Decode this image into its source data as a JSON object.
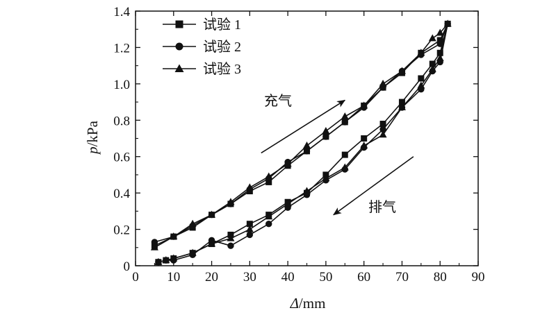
{
  "chart_data": {
    "type": "line",
    "xlabel_var": "Δ",
    "xlabel_unit": "/mm",
    "ylabel_var": "p",
    "ylabel_unit": "/kPa",
    "xlim": [
      0,
      90
    ],
    "ylim": [
      0,
      1.4
    ],
    "x_ticks": [
      "0",
      "10",
      "20",
      "30",
      "40",
      "50",
      "60",
      "70",
      "80",
      "90"
    ],
    "y_ticks": [
      "0",
      "0.2",
      "0.4",
      "0.6",
      "0.8",
      "1.0",
      "1.2",
      "1.4"
    ],
    "grid": false,
    "legend_position": "top-left",
    "series": [
      {
        "name": "试验 1",
        "marker": "square",
        "x": [
          5,
          10,
          15,
          20,
          25,
          30,
          35,
          40,
          45,
          50,
          55,
          60,
          65,
          70,
          75,
          80,
          82,
          80,
          78,
          75,
          70,
          65,
          60,
          55,
          50,
          45,
          40,
          35,
          30,
          25,
          20,
          15,
          10,
          8,
          6
        ],
        "y": [
          0.11,
          0.16,
          0.21,
          0.28,
          0.34,
          0.41,
          0.46,
          0.55,
          0.63,
          0.71,
          0.79,
          0.88,
          0.98,
          1.06,
          1.17,
          1.24,
          1.33,
          1.17,
          1.11,
          1.03,
          0.9,
          0.78,
          0.7,
          0.61,
          0.5,
          0.4,
          0.35,
          0.28,
          0.23,
          0.17,
          0.12,
          0.07,
          0.04,
          0.03,
          0.02
        ]
      },
      {
        "name": "试验 2",
        "marker": "circle",
        "x": [
          5,
          10,
          15,
          20,
          25,
          30,
          35,
          40,
          45,
          50,
          55,
          60,
          65,
          70,
          75,
          80,
          82,
          80,
          78,
          75,
          70,
          65,
          60,
          55,
          50,
          45,
          40,
          35,
          30,
          25,
          20,
          15,
          10,
          8,
          6
        ],
        "y": [
          0.13,
          0.16,
          0.22,
          0.28,
          0.34,
          0.42,
          0.48,
          0.57,
          0.63,
          0.71,
          0.79,
          0.87,
          0.98,
          1.07,
          1.16,
          1.22,
          1.33,
          1.12,
          1.07,
          0.97,
          0.87,
          0.75,
          0.65,
          0.53,
          0.47,
          0.39,
          0.32,
          0.23,
          0.17,
          0.11,
          0.14,
          0.06,
          0.03,
          0.03,
          0.02
        ]
      },
      {
        "name": "试验 3",
        "marker": "triangle",
        "x": [
          5,
          10,
          15,
          20,
          25,
          30,
          35,
          40,
          45,
          50,
          55,
          60,
          65,
          70,
          75,
          78,
          80,
          82,
          80,
          78,
          75,
          70,
          65,
          60,
          55,
          50,
          45,
          40,
          35,
          30,
          25,
          20,
          15,
          10,
          8,
          6
        ],
        "y": [
          0.1,
          0.16,
          0.23,
          0.28,
          0.35,
          0.43,
          0.49,
          0.56,
          0.66,
          0.74,
          0.82,
          0.88,
          1.0,
          1.07,
          1.17,
          1.25,
          1.28,
          1.33,
          1.14,
          1.08,
          0.99,
          0.87,
          0.72,
          0.66,
          0.54,
          0.48,
          0.41,
          0.34,
          0.27,
          0.2,
          0.15,
          0.12,
          0.07,
          0.04,
          0.03,
          0.02
        ]
      }
    ],
    "annotations": [
      {
        "label": "充气",
        "arrow_from": [
          33,
          0.62
        ],
        "arrow_to": [
          55,
          0.91
        ]
      },
      {
        "label": "排气",
        "arrow_from": [
          73,
          0.6
        ],
        "arrow_to": [
          52,
          0.28
        ]
      }
    ]
  }
}
